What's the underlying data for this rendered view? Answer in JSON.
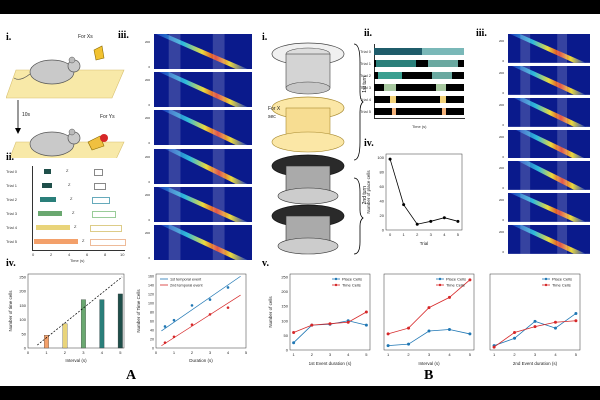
{
  "panelA": {
    "labels": {
      "i": "i.",
      "ii": "ii.",
      "iii": "iii.",
      "iv": "iv."
    },
    "cue_x": "For Xs",
    "cue_y": "For Ys",
    "delay": "10s",
    "trials": [
      "Trial 0",
      "Trial 1",
      "Trial 2",
      "Trial 3",
      "Trial 4",
      "Trial 5"
    ],
    "time_label": "Time (s)",
    "time_ticks": [
      "0",
      "2",
      "4",
      "6",
      "8",
      "10"
    ],
    "bar_letters": {
      "x": "X",
      "z": "Z",
      "y": "Y"
    },
    "caption": "A"
  },
  "panelB": {
    "labels": {
      "i": "i.",
      "ii": "ii.",
      "iii": "iii.",
      "iv": "iv.",
      "v": "v."
    },
    "for_x": "For X",
    "sec": "sec",
    "turn1": "1st turn",
    "turn2": "2nd turn",
    "trials": [
      "Trial 0",
      "Trial 1",
      "Trial 2",
      "Trial 3",
      "Trial 4",
      "Trial 5"
    ],
    "time_label": "Time (s)",
    "caption": "B"
  },
  "heatmap_axis": {
    "ylabel": "Neuron",
    "ticks": [
      "200",
      "150",
      "100",
      "50",
      "0"
    ],
    "xticks": [
      "0.0",
      "2.5",
      "5.0",
      "7.5",
      "10.0",
      "12.5"
    ]
  },
  "colors": {
    "heat_bg": "#0a1a8c",
    "red": "#d62728",
    "blue": "#1f77b4",
    "teal": "#1f6f6a",
    "tan": "#f3b27a"
  },
  "chart_data": [
    {
      "id": "A-iv-bar",
      "type": "bar",
      "xlabel": "Interval (s)",
      "ylabel": "Number of time cells",
      "x": [
        1,
        2,
        3,
        4,
        5
      ],
      "values": [
        45,
        85,
        170,
        170,
        190
      ],
      "xticks": [
        "0",
        "1",
        "2",
        "3",
        "4",
        "5"
      ],
      "yticks": [
        "0",
        "50",
        "100",
        "150",
        "200",
        "250"
      ],
      "ylim": [
        0,
        260
      ],
      "trend": "dashed linear fit"
    },
    {
      "id": "A-iv-scatter",
      "type": "scatter",
      "xlabel": "Duration (s)",
      "ylabel": "Number of Time Cells",
      "xticks": [
        "0",
        "1",
        "2",
        "3",
        "4",
        "5"
      ],
      "yticks": [
        "0",
        "20",
        "40",
        "60",
        "80",
        "100",
        "120",
        "140",
        "160"
      ],
      "xlim": [
        0,
        5
      ],
      "ylim": [
        0,
        165
      ],
      "series": [
        {
          "name": "1st temporal event",
          "x": [
            0.5,
            1,
            2,
            3,
            4
          ],
          "y": [
            48,
            62,
            95,
            108,
            135
          ]
        },
        {
          "name": "2nd temporal event",
          "x": [
            0.5,
            1,
            2,
            3,
            4
          ],
          "y": [
            12,
            25,
            52,
            75,
            90
          ]
        }
      ]
    },
    {
      "id": "B-iv-line",
      "type": "line",
      "xlabel": "Trial",
      "ylabel": "Number of place cells",
      "xticks": [
        "0",
        "1",
        "2",
        "3",
        "4",
        "5"
      ],
      "yticks": [
        "0",
        "20",
        "40",
        "60",
        "80",
        "100"
      ],
      "xlim": [
        0,
        5
      ],
      "ylim": [
        0,
        105
      ],
      "series": [
        {
          "name": "place cells",
          "x": [
            0,
            1,
            2,
            3,
            4,
            5
          ],
          "y": [
            98,
            35,
            8,
            12,
            17,
            12
          ]
        }
      ]
    },
    {
      "id": "B-v-1",
      "type": "line",
      "xlabel": "1st Event duration (s)",
      "ylabel": "Number of cells",
      "xticks": [
        "1",
        "2",
        "3",
        "4",
        "5"
      ],
      "yticks": [
        "0",
        "50",
        "100",
        "150",
        "200",
        "250"
      ],
      "ylim": [
        0,
        260
      ],
      "series": [
        {
          "name": "Place Cells",
          "x": [
            1,
            2,
            3,
            4,
            5
          ],
          "y": [
            25,
            85,
            88,
            100,
            85
          ]
        },
        {
          "name": "Time Cells",
          "x": [
            1,
            2,
            3,
            4,
            5
          ],
          "y": [
            60,
            85,
            90,
            95,
            130
          ]
        }
      ]
    },
    {
      "id": "B-v-2",
      "type": "line",
      "xlabel": "Interval (s)",
      "ylabel": "",
      "xticks": [
        "1",
        "2",
        "3",
        "4",
        "5"
      ],
      "ylim": [
        0,
        260
      ],
      "series": [
        {
          "name": "Place Cells",
          "x": [
            1,
            2,
            3,
            4,
            5
          ],
          "y": [
            15,
            20,
            65,
            70,
            55
          ]
        },
        {
          "name": "Time Cells",
          "x": [
            1,
            2,
            3,
            4,
            5
          ],
          "y": [
            55,
            75,
            145,
            180,
            240
          ]
        }
      ]
    },
    {
      "id": "B-v-3",
      "type": "line",
      "xlabel": "2nd Event duration (s)",
      "ylabel": "",
      "xticks": [
        "1",
        "2",
        "3",
        "4",
        "5"
      ],
      "ylim": [
        0,
        260
      ],
      "series": [
        {
          "name": "Place Cells",
          "x": [
            1,
            2,
            3,
            4,
            5
          ],
          "y": [
            15,
            40,
            98,
            75,
            125
          ]
        },
        {
          "name": "Time Cells",
          "x": [
            1,
            2,
            3,
            4,
            5
          ],
          "y": [
            10,
            60,
            80,
            95,
            100
          ]
        }
      ]
    }
  ]
}
